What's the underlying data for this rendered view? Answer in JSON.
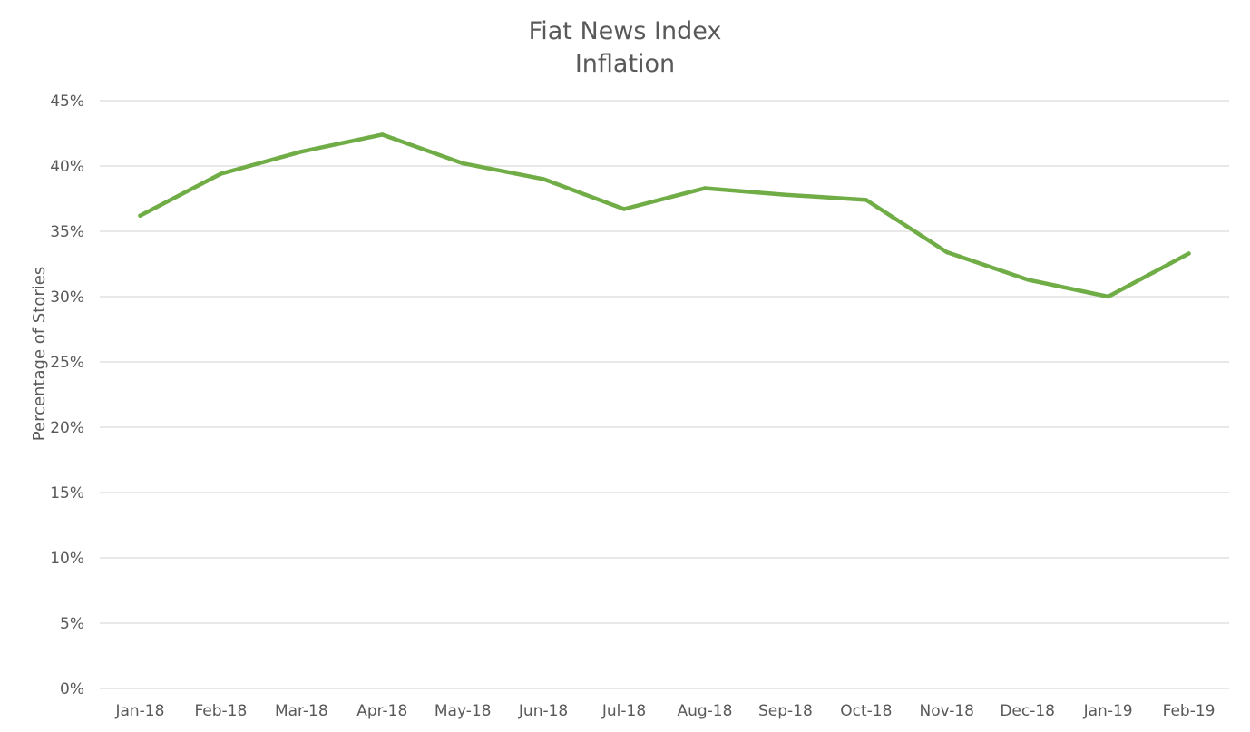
{
  "chart_data": {
    "type": "line",
    "title": [
      "Fiat News Index",
      "Inflation"
    ],
    "xlabel": "",
    "ylabel": "Percentage of Stories",
    "categories": [
      "Jan-18",
      "Feb-18",
      "Mar-18",
      "Apr-18",
      "May-18",
      "Jun-18",
      "Jul-18",
      "Aug-18",
      "Sep-18",
      "Oct-18",
      "Nov-18",
      "Dec-18",
      "Jan-19",
      "Feb-19"
    ],
    "series": [
      {
        "values": [
          36.2,
          39.4,
          41.1,
          42.4,
          40.2,
          39.0,
          36.7,
          38.3,
          37.8,
          37.4,
          33.4,
          31.3,
          30.0,
          33.3
        ],
        "color": "#70ad47"
      }
    ],
    "ylim": [
      0,
      45
    ],
    "yticks": [
      0,
      5,
      10,
      15,
      20,
      25,
      30,
      35,
      40,
      45
    ],
    "ytick_labels": [
      "0%",
      "5%",
      "10%",
      "15%",
      "20%",
      "25%",
      "30%",
      "35%",
      "40%",
      "45%"
    ],
    "grid": true,
    "legend": "none"
  }
}
